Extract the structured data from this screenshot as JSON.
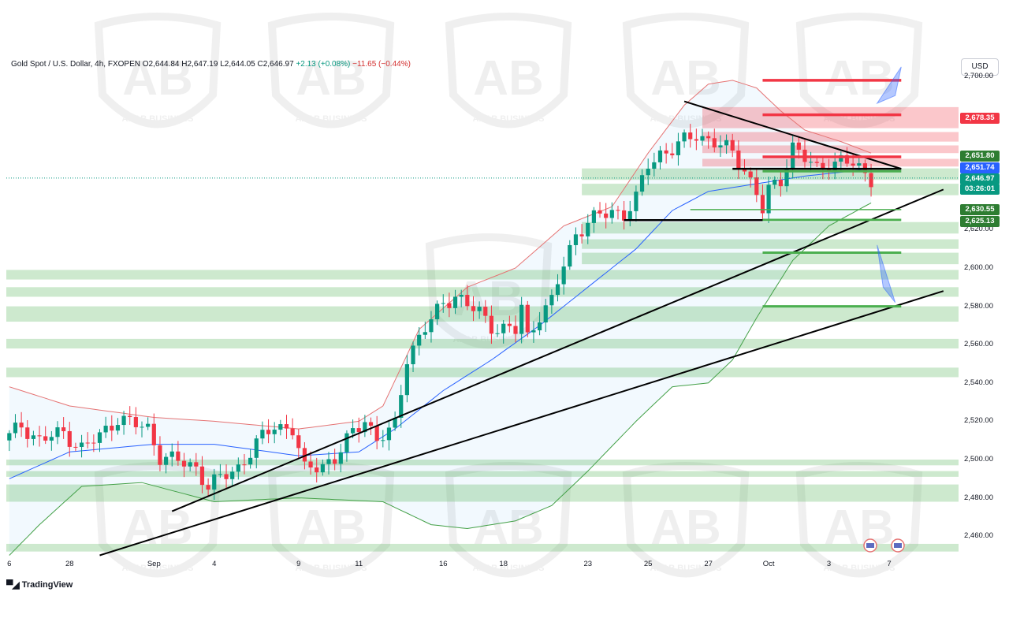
{
  "header": {
    "symbol": "Gold Spot / U.S. Dollar, 4h, FXOPEN",
    "open_label": "O",
    "open": "2,644.84",
    "high_label": "H",
    "high": "2,647.19",
    "low_label": "L",
    "low": "2,644.05",
    "close_label": "C",
    "close": "2,646.97",
    "change": "+2.13 (+0.08%)",
    "change2": "−11.65 (−0.44%)"
  },
  "currency": "USD",
  "brand": {
    "name": "TradingView",
    "logo_icon": "tradingview-logo-icon"
  },
  "watermark": {
    "text": "ARAB BUSINESS",
    "letters": "AB",
    "icon": "shield-logo-icon"
  },
  "colors": {
    "up": "#089981",
    "down": "#f23645",
    "resistance": "#f23645",
    "support": "#4caf50",
    "ma": "#2962ff",
    "upper_band": "#e57373",
    "lower_band": "#43a047"
  },
  "price_tags": [
    {
      "value": "2,678.35",
      "y": 2678.35,
      "color": "#f23645"
    },
    {
      "value": "2,651.80",
      "y": 2651.8,
      "color": "#2e7d32"
    },
    {
      "value": "2,651.74",
      "y": 2651.74,
      "color": "#2962ff"
    },
    {
      "value": "2,646.97",
      "y": 2646.97,
      "color": "#089981",
      "extra": "03:26:01"
    },
    {
      "value": "2,630.55",
      "y": 2630.55,
      "color": "#2e7d32"
    },
    {
      "value": "2,625.13",
      "y": 2625.13,
      "color": "#2e7d32"
    }
  ],
  "chart_data": {
    "type": "candlestick",
    "title": "Gold Spot / U.S. Dollar, 4h, FXOPEN",
    "xlabel": "",
    "ylabel": "",
    "ylim": [
      2450,
      2705
    ],
    "y_ticks": [
      "2,700.00",
      "2,620.00",
      "2,600.00",
      "2,580.00",
      "2,560.00",
      "2,540.00",
      "2,520.00",
      "2,500.00",
      "2,480.00",
      "2,460.00"
    ],
    "y_tick_values": [
      2700,
      2620,
      2600,
      2580,
      2560,
      2540,
      2520,
      2500,
      2480,
      2460
    ],
    "x_ticks": [
      "6",
      "28",
      "Sep",
      "4",
      "9",
      "11",
      "16",
      "18",
      "23",
      "25",
      "27",
      "Oct",
      "3",
      "7"
    ],
    "x_tick_index": [
      0,
      10,
      24,
      34,
      48,
      58,
      72,
      82,
      96,
      106,
      116,
      126,
      136,
      146
    ],
    "bar_count": 153,
    "anchors": [
      [
        0,
        2512
      ],
      [
        2,
        2518
      ],
      [
        5,
        2510
      ],
      [
        9,
        2514
      ],
      [
        12,
        2506
      ],
      [
        15,
        2512
      ],
      [
        18,
        2522
      ],
      [
        21,
        2518
      ],
      [
        23,
        2516
      ],
      [
        25,
        2502
      ],
      [
        28,
        2499
      ],
      [
        31,
        2496
      ],
      [
        33,
        2486
      ],
      [
        35,
        2490
      ],
      [
        38,
        2496
      ],
      [
        41,
        2508
      ],
      [
        44,
        2518
      ],
      [
        47,
        2516
      ],
      [
        49,
        2494
      ],
      [
        51,
        2497
      ],
      [
        54,
        2500
      ],
      [
        57,
        2514
      ],
      [
        59,
        2522
      ],
      [
        61,
        2510
      ],
      [
        63,
        2514
      ],
      [
        64,
        2518
      ],
      [
        66,
        2554
      ],
      [
        69,
        2568
      ],
      [
        72,
        2582
      ],
      [
        74,
        2586
      ],
      [
        76,
        2580
      ],
      [
        78,
        2577
      ],
      [
        80,
        2570
      ],
      [
        82,
        2568
      ],
      [
        84,
        2567
      ],
      [
        85,
        2580
      ],
      [
        86,
        2564
      ],
      [
        88,
        2576
      ],
      [
        90,
        2582
      ],
      [
        92,
        2602
      ],
      [
        94,
        2618
      ],
      [
        96,
        2624
      ],
      [
        98,
        2627
      ],
      [
        100,
        2630
      ],
      [
        102,
        2628
      ],
      [
        104,
        2636
      ],
      [
        106,
        2654
      ],
      [
        108,
        2660
      ],
      [
        110,
        2662
      ],
      [
        112,
        2666
      ],
      [
        114,
        2670
      ],
      [
        116,
        2667
      ],
      [
        118,
        2664
      ],
      [
        120,
        2660
      ],
      [
        122,
        2652
      ],
      [
        124,
        2639
      ],
      [
        125,
        2630
      ],
      [
        126,
        2640
      ],
      [
        128,
        2646
      ],
      [
        130,
        2664
      ],
      [
        132,
        2657
      ],
      [
        134,
        2651
      ],
      [
        136,
        2655
      ],
      [
        138,
        2656
      ],
      [
        140,
        2654
      ],
      [
        142,
        2649
      ],
      [
        143,
        2647
      ]
    ],
    "bands": {
      "upper": [
        [
          0,
          2538
        ],
        [
          10,
          2528
        ],
        [
          24,
          2522
        ],
        [
          34,
          2520
        ],
        [
          48,
          2516
        ],
        [
          58,
          2520
        ],
        [
          62,
          2528
        ],
        [
          68,
          2568
        ],
        [
          76,
          2590
        ],
        [
          84,
          2600
        ],
        [
          92,
          2622
        ],
        [
          100,
          2632
        ],
        [
          106,
          2660
        ],
        [
          112,
          2685
        ],
        [
          116,
          2696
        ],
        [
          120,
          2698
        ],
        [
          124,
          2694
        ],
        [
          128,
          2682
        ],
        [
          132,
          2672
        ],
        [
          138,
          2666
        ],
        [
          143,
          2660
        ]
      ],
      "middle": [
        [
          0,
          2490
        ],
        [
          10,
          2504
        ],
        [
          24,
          2508
        ],
        [
          34,
          2508
        ],
        [
          48,
          2502
        ],
        [
          58,
          2504
        ],
        [
          64,
          2516
        ],
        [
          72,
          2536
        ],
        [
          80,
          2552
        ],
        [
          88,
          2570
        ],
        [
          96,
          2590
        ],
        [
          104,
          2610
        ],
        [
          110,
          2630
        ],
        [
          116,
          2640
        ],
        [
          124,
          2644
        ],
        [
          132,
          2648
        ],
        [
          138,
          2650
        ],
        [
          143,
          2652
        ]
      ],
      "lower": [
        [
          0,
          2450
        ],
        [
          5,
          2466
        ],
        [
          12,
          2486
        ],
        [
          22,
          2488
        ],
        [
          34,
          2478
        ],
        [
          48,
          2480
        ],
        [
          62,
          2478
        ],
        [
          70,
          2466
        ],
        [
          76,
          2464
        ],
        [
          84,
          2468
        ],
        [
          90,
          2476
        ],
        [
          96,
          2494
        ],
        [
          104,
          2520
        ],
        [
          110,
          2538
        ],
        [
          116,
          2540
        ],
        [
          120,
          2552
        ],
        [
          124,
          2574
        ],
        [
          130,
          2604
        ],
        [
          136,
          2622
        ],
        [
          143,
          2634
        ]
      ]
    },
    "resistance_lines": [
      2698,
      2680,
      2658
    ],
    "resistance_zones": [
      [
        2673,
        2684
      ],
      [
        2666,
        2671
      ],
      [
        2660,
        2664
      ],
      [
        2653,
        2657
      ]
    ],
    "support_lines": [
      2650.5,
      2630.5,
      2625.1,
      2608,
      2580
    ],
    "support_zones": [
      [
        2646,
        2652
      ],
      [
        2638,
        2644
      ],
      [
        2618,
        2624
      ],
      [
        2610,
        2615
      ],
      [
        2602,
        2608
      ],
      [
        2594,
        2599
      ],
      [
        2585,
        2590
      ],
      [
        2572,
        2580
      ],
      [
        2558,
        2563
      ],
      [
        2543,
        2548
      ],
      [
        2497,
        2500
      ],
      [
        2491,
        2494
      ],
      [
        2478,
        2487
      ],
      [
        2452,
        2456
      ]
    ],
    "trendlines": [
      {
        "from": [
          27,
          2473
        ],
        "to": [
          155,
          2641
        ]
      },
      {
        "from": [
          15,
          2450
        ],
        "to": [
          155,
          2588
        ]
      },
      {
        "from": [
          112,
          2687
        ],
        "to": [
          148,
          2651.8
        ]
      }
    ],
    "horizontal_black": [
      {
        "from": [
          120,
          2651.8
        ],
        "to": [
          148,
          2651.8
        ]
      },
      {
        "from": [
          102,
          2625
        ],
        "to": [
          140,
          2625
        ]
      }
    ]
  }
}
